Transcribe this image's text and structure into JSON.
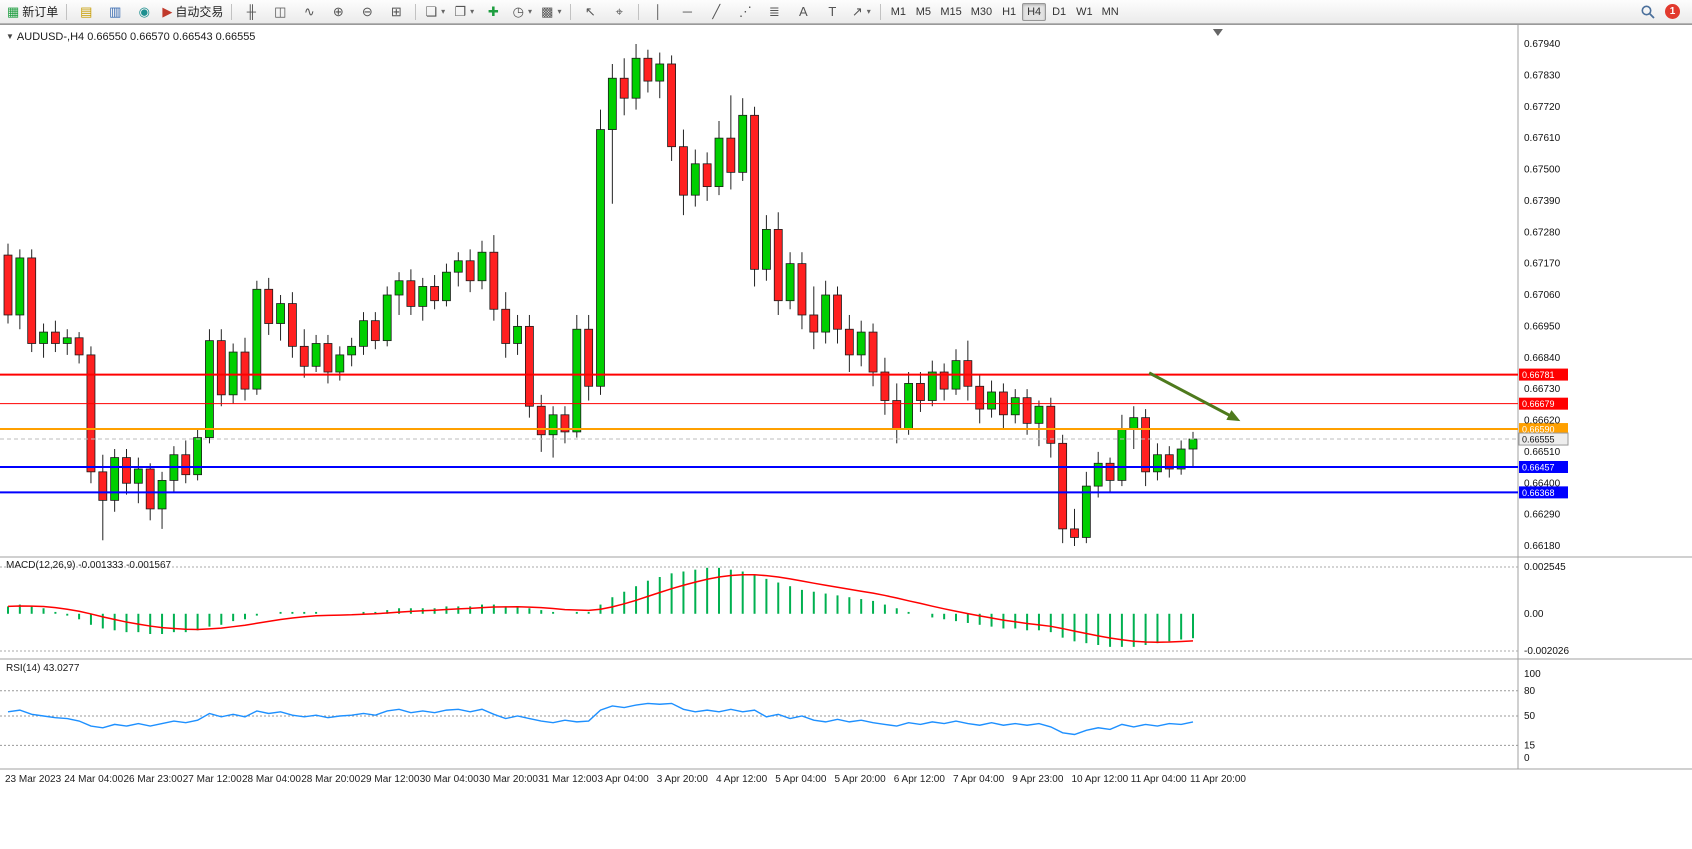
{
  "toolbar": {
    "groups": [
      [
        {
          "name": "new-order-button",
          "glyph": "▦",
          "glyph_color": "#1e9e40",
          "label": "新订单"
        }
      ],
      [
        {
          "name": "market-watch-button",
          "glyph": "▤",
          "glyph_color": "#c79c00"
        },
        {
          "name": "data-window-button",
          "glyph": "▥",
          "glyph_color": "#3568b0"
        },
        {
          "name": "navigator-button",
          "glyph": "◉",
          "glyph_color": "#1d8f8f"
        },
        {
          "name": "autotrading-button",
          "glyph": "▶",
          "glyph_color": "#c0392b",
          "label": "自动交易"
        }
      ],
      [
        {
          "name": "bar-chart-button",
          "glyph": "╫"
        },
        {
          "name": "candlestick-chart-button",
          "glyph": "◫"
        },
        {
          "name": "line-chart-button",
          "glyph": "∿"
        },
        {
          "name": "zoom-in-button",
          "glyph": "⊕"
        },
        {
          "name": "zoom-out-button",
          "glyph": "⊖"
        },
        {
          "name": "tile-windows-button",
          "glyph": "⊞"
        }
      ],
      [
        {
          "name": "new-chart-button",
          "glyph": "❏",
          "caret": true
        },
        {
          "name": "profiles-button",
          "glyph": "❐",
          "caret": true
        },
        {
          "name": "indicators-button",
          "glyph": "✚",
          "glyph_color": "#1e9e40"
        },
        {
          "name": "periods-button",
          "glyph": "◷",
          "caret": true
        },
        {
          "name": "templates-button",
          "glyph": "▩",
          "caret": true
        }
      ],
      [
        {
          "name": "cursor-button",
          "glyph": "↖"
        },
        {
          "name": "crosshair-button",
          "glyph": "⌖"
        }
      ],
      [
        {
          "name": "vertical-line-button",
          "glyph": "│"
        },
        {
          "name": "horizontal-line-button",
          "glyph": "─"
        },
        {
          "name": "trendline-button",
          "glyph": "╱"
        },
        {
          "name": "equidistant-channel-button",
          "glyph": "⋰"
        },
        {
          "name": "fibonacci-button",
          "glyph": "≣"
        },
        {
          "name": "text-button",
          "glyph": "A"
        },
        {
          "name": "text-label-button",
          "glyph": "T"
        },
        {
          "name": "arrows-button",
          "glyph": "↗",
          "caret": true
        }
      ]
    ],
    "timeframes": [
      {
        "label": "M1"
      },
      {
        "label": "M5"
      },
      {
        "label": "M15"
      },
      {
        "label": "M30"
      },
      {
        "label": "H1"
      },
      {
        "label": "H4",
        "active": true
      },
      {
        "label": "D1"
      },
      {
        "label": "W1"
      },
      {
        "label": "MN"
      }
    ],
    "notification_badge": "1"
  },
  "chart": {
    "collapse_arrow": "▼",
    "symbol_label": "AUDUSD-,H4  0.66550 0.66570 0.66543 0.66555",
    "price_axis": {
      "max": 0.6794,
      "min": 0.6618,
      "labels": [
        "0.67940",
        "0.67830",
        "0.67720",
        "0.67610",
        "0.67500",
        "0.67390",
        "0.67280",
        "0.67170",
        "0.67060",
        "0.66950",
        "0.66840",
        "0.66730",
        "0.66620",
        "0.66510",
        "0.66400",
        "0.66290",
        "0.66180"
      ]
    },
    "time_axis": {
      "labels": [
        "23 Mar 2023",
        "24 Mar 04:00",
        "26 Mar 23:00",
        "27 Mar 12:00",
        "28 Mar 04:00",
        "28 Mar 20:00",
        "29 Mar 12:00",
        "30 Mar 04:00",
        "30 Mar 20:00",
        "31 Mar 12:00",
        "3 Apr 04:00",
        "3 Apr 20:00",
        "4 Apr 12:00",
        "5 Apr 04:00",
        "5 Apr 20:00",
        "6 Apr 12:00",
        "7 Apr 04:00",
        "9 Apr 23:00",
        "10 Apr 12:00",
        "11 Apr 04:00",
        "11 Apr 20:00"
      ]
    },
    "hlines": [
      {
        "price": 0.66781,
        "color": "#ff0000",
        "width": 2,
        "tag": "0.66781"
      },
      {
        "price": 0.66679,
        "color": "#ff0000",
        "width": 1,
        "tag": "0.66679"
      },
      {
        "price": 0.6659,
        "color": "#ffa000",
        "width": 2,
        "tag": "0.66590"
      },
      {
        "price": 0.66457,
        "color": "#0000ff",
        "width": 2,
        "tag": "0.66457"
      },
      {
        "price": 0.66368,
        "color": "#0000ff",
        "width": 2,
        "tag": "0.66368"
      }
    ],
    "current_price": {
      "value": 0.66555,
      "tag": "0.66555"
    },
    "arrow_annotation": {
      "bar1": 96.3,
      "price1": 0.66787,
      "bar2": 104.0,
      "price2": 0.66618,
      "color": "#4e7a1d"
    },
    "shift_marker_bar": 102.1
  },
  "chart_data": {
    "type": "candlestick",
    "symbol": "AUDUSD",
    "timeframe": "H4",
    "bull_color": "#00cf00",
    "bear_color": "#ff2020",
    "wick_color": "#222222",
    "price_range": [
      0.6618,
      0.6794
    ],
    "ohlc": [
      [
        0.672,
        0.6724,
        0.6696,
        0.6699
      ],
      [
        0.6699,
        0.6722,
        0.6694,
        0.6719
      ],
      [
        0.6719,
        0.6722,
        0.6686,
        0.6689
      ],
      [
        0.6689,
        0.6696,
        0.6684,
        0.6693
      ],
      [
        0.6693,
        0.6697,
        0.6686,
        0.6689
      ],
      [
        0.6689,
        0.6694,
        0.6685,
        0.6691
      ],
      [
        0.6691,
        0.6693,
        0.6682,
        0.6685
      ],
      [
        0.6685,
        0.6688,
        0.664,
        0.6644
      ],
      [
        0.6644,
        0.665,
        0.662,
        0.6634
      ],
      [
        0.6634,
        0.6652,
        0.663,
        0.6649
      ],
      [
        0.6649,
        0.6652,
        0.6636,
        0.664
      ],
      [
        0.664,
        0.6649,
        0.6633,
        0.6645
      ],
      [
        0.6645,
        0.6647,
        0.6627,
        0.6631
      ],
      [
        0.6631,
        0.6644,
        0.6624,
        0.6641
      ],
      [
        0.6641,
        0.6653,
        0.6637,
        0.665
      ],
      [
        0.665,
        0.6655,
        0.664,
        0.6643
      ],
      [
        0.6643,
        0.6659,
        0.6641,
        0.6656
      ],
      [
        0.6656,
        0.6694,
        0.6654,
        0.669
      ],
      [
        0.669,
        0.6694,
        0.6667,
        0.6671
      ],
      [
        0.6671,
        0.6689,
        0.6668,
        0.6686
      ],
      [
        0.6686,
        0.6691,
        0.6669,
        0.6673
      ],
      [
        0.6673,
        0.6711,
        0.6671,
        0.6708
      ],
      [
        0.6708,
        0.6712,
        0.6692,
        0.6696
      ],
      [
        0.6696,
        0.6706,
        0.669,
        0.6703
      ],
      [
        0.6703,
        0.6707,
        0.6684,
        0.6688
      ],
      [
        0.6688,
        0.6694,
        0.6677,
        0.6681
      ],
      [
        0.6681,
        0.6692,
        0.6679,
        0.6689
      ],
      [
        0.6689,
        0.6692,
        0.6675,
        0.6679
      ],
      [
        0.6679,
        0.6688,
        0.6676,
        0.6685
      ],
      [
        0.6685,
        0.6691,
        0.6681,
        0.6688
      ],
      [
        0.6688,
        0.67,
        0.6685,
        0.6697
      ],
      [
        0.6697,
        0.67,
        0.6687,
        0.669
      ],
      [
        0.669,
        0.6709,
        0.6688,
        0.6706
      ],
      [
        0.6706,
        0.6714,
        0.6699,
        0.6711
      ],
      [
        0.6711,
        0.6715,
        0.6699,
        0.6702
      ],
      [
        0.6702,
        0.6712,
        0.6697,
        0.6709
      ],
      [
        0.6709,
        0.6713,
        0.6701,
        0.6704
      ],
      [
        0.6704,
        0.6717,
        0.6702,
        0.6714
      ],
      [
        0.6714,
        0.6721,
        0.6709,
        0.6718
      ],
      [
        0.6718,
        0.6722,
        0.6707,
        0.6711
      ],
      [
        0.6711,
        0.6725,
        0.6708,
        0.6721
      ],
      [
        0.6721,
        0.6727,
        0.6697,
        0.6701
      ],
      [
        0.6701,
        0.6707,
        0.6684,
        0.6689
      ],
      [
        0.6689,
        0.6699,
        0.6685,
        0.6695
      ],
      [
        0.6695,
        0.6699,
        0.6663,
        0.6667
      ],
      [
        0.6667,
        0.6671,
        0.6651,
        0.6657
      ],
      [
        0.6657,
        0.6667,
        0.6649,
        0.6664
      ],
      [
        0.6664,
        0.6667,
        0.6654,
        0.6658
      ],
      [
        0.6658,
        0.6699,
        0.6656,
        0.6694
      ],
      [
        0.6694,
        0.6699,
        0.6669,
        0.6674
      ],
      [
        0.6674,
        0.6771,
        0.6671,
        0.6764
      ],
      [
        0.6764,
        0.6787,
        0.6738,
        0.6782
      ],
      [
        0.6782,
        0.6789,
        0.6769,
        0.6775
      ],
      [
        0.6775,
        0.6794,
        0.6771,
        0.6789
      ],
      [
        0.6789,
        0.6792,
        0.6777,
        0.6781
      ],
      [
        0.6781,
        0.6791,
        0.6775,
        0.6787
      ],
      [
        0.6787,
        0.679,
        0.6753,
        0.6758
      ],
      [
        0.6758,
        0.6764,
        0.6734,
        0.6741
      ],
      [
        0.6741,
        0.6757,
        0.6737,
        0.6752
      ],
      [
        0.6752,
        0.6756,
        0.6739,
        0.6744
      ],
      [
        0.6744,
        0.6767,
        0.6741,
        0.6761
      ],
      [
        0.6761,
        0.6776,
        0.6743,
        0.6749
      ],
      [
        0.6749,
        0.6775,
        0.6746,
        0.6769
      ],
      [
        0.6769,
        0.6772,
        0.6709,
        0.6715
      ],
      [
        0.6715,
        0.6734,
        0.6711,
        0.6729
      ],
      [
        0.6729,
        0.6735,
        0.6699,
        0.6704
      ],
      [
        0.6704,
        0.6721,
        0.6701,
        0.6717
      ],
      [
        0.6717,
        0.6721,
        0.6694,
        0.6699
      ],
      [
        0.6699,
        0.6709,
        0.6687,
        0.6693
      ],
      [
        0.6693,
        0.6711,
        0.6689,
        0.6706
      ],
      [
        0.6706,
        0.6709,
        0.6689,
        0.6694
      ],
      [
        0.6694,
        0.6699,
        0.6679,
        0.6685
      ],
      [
        0.6685,
        0.6697,
        0.6681,
        0.6693
      ],
      [
        0.6693,
        0.6696,
        0.6674,
        0.6679
      ],
      [
        0.6679,
        0.6684,
        0.6664,
        0.6669
      ],
      [
        0.6669,
        0.6675,
        0.6654,
        0.6659
      ],
      [
        0.6659,
        0.6679,
        0.6657,
        0.6675
      ],
      [
        0.6675,
        0.6679,
        0.6665,
        0.6669
      ],
      [
        0.6669,
        0.6683,
        0.6667,
        0.6679
      ],
      [
        0.6679,
        0.6682,
        0.6669,
        0.6673
      ],
      [
        0.6673,
        0.6687,
        0.6671,
        0.6683
      ],
      [
        0.6683,
        0.669,
        0.6669,
        0.6674
      ],
      [
        0.6674,
        0.6678,
        0.6661,
        0.6666
      ],
      [
        0.6666,
        0.6676,
        0.6663,
        0.6672
      ],
      [
        0.6672,
        0.6675,
        0.6659,
        0.6664
      ],
      [
        0.6664,
        0.6673,
        0.6661,
        0.667
      ],
      [
        0.667,
        0.6673,
        0.6657,
        0.6661
      ],
      [
        0.6661,
        0.6669,
        0.6653,
        0.6667
      ],
      [
        0.6667,
        0.667,
        0.6649,
        0.6654
      ],
      [
        0.6654,
        0.6657,
        0.6619,
        0.6624
      ],
      [
        0.6624,
        0.6631,
        0.6618,
        0.6621
      ],
      [
        0.6621,
        0.6644,
        0.6619,
        0.6639
      ],
      [
        0.6639,
        0.6651,
        0.6635,
        0.6647
      ],
      [
        0.6647,
        0.6649,
        0.6637,
        0.6641
      ],
      [
        0.6641,
        0.6664,
        0.6639,
        0.6659
      ],
      [
        0.6659,
        0.6667,
        0.6652,
        0.6663
      ],
      [
        0.6663,
        0.6666,
        0.6639,
        0.6644
      ],
      [
        0.6644,
        0.6654,
        0.6641,
        0.665
      ],
      [
        0.665,
        0.6653,
        0.6642,
        0.6645
      ],
      [
        0.6645,
        0.6655,
        0.6643,
        0.6652
      ],
      [
        0.6652,
        0.6658,
        0.6646,
        0.66555
      ]
    ]
  },
  "macd": {
    "label": "MACD(12,26,9) -0.001333 -0.001567",
    "axis_labels": [
      "0.002545",
      "0.00",
      "-0.002026"
    ],
    "max": 0.002545,
    "min": -0.002026,
    "histogram_color": "#00b050",
    "signal_color": "#ff0000",
    "values": [
      0.0004,
      0.0005,
      0.0004,
      0.0003,
      0.0001,
      -0.0001,
      -0.0003,
      -0.0006,
      -0.0008,
      -0.0009,
      -0.001,
      -0.001,
      -0.0011,
      -0.0011,
      -0.001,
      -0.001,
      -0.0009,
      -0.0007,
      -0.0006,
      -0.0004,
      -0.0003,
      -0.0001,
      0.0,
      0.0001,
      0.0001,
      0.0001,
      0.0001,
      0.0,
      0.0,
      0.0,
      0.0001,
      0.0001,
      0.0002,
      0.0003,
      0.0003,
      0.0003,
      0.0003,
      0.0004,
      0.0004,
      0.0004,
      0.0005,
      0.0005,
      0.0004,
      0.0004,
      0.0003,
      0.0002,
      0.0001,
      0.0,
      0.0001,
      0.0001,
      0.0005,
      0.0009,
      0.0012,
      0.0015,
      0.0018,
      0.002,
      0.0022,
      0.0023,
      0.0024,
      0.0025,
      0.0025,
      0.0024,
      0.0023,
      0.0021,
      0.0019,
      0.0017,
      0.0015,
      0.0013,
      0.0012,
      0.0011,
      0.001,
      0.0009,
      0.0008,
      0.0007,
      0.0005,
      0.0003,
      0.0001,
      0.0,
      -0.0002,
      -0.0003,
      -0.0004,
      -0.0005,
      -0.0006,
      -0.0007,
      -0.0008,
      -0.0008,
      -0.0009,
      -0.0009,
      -0.001,
      -0.0013,
      -0.0015,
      -0.0016,
      -0.0017,
      -0.0018,
      -0.0018,
      -0.0018,
      -0.0017,
      -0.0016,
      -0.0015,
      -0.0014,
      -0.00133
    ]
  },
  "rsi": {
    "label": "RSI(14) 43.0277",
    "axis_labels": [
      "100",
      "80",
      "50",
      "15",
      "0"
    ],
    "levels": [
      80,
      50,
      15
    ],
    "max": 100,
    "min": 0,
    "line_color": "#1e90ff",
    "values": [
      55,
      57,
      52,
      50,
      48,
      47,
      44,
      38,
      36,
      40,
      38,
      41,
      38,
      41,
      44,
      42,
      45,
      53,
      49,
      52,
      49,
      56,
      53,
      55,
      51,
      49,
      51,
      48,
      50,
      51,
      53,
      51,
      56,
      58,
      54,
      56,
      54,
      57,
      58,
      55,
      58,
      52,
      47,
      50,
      47,
      44,
      42,
      45,
      43,
      44,
      57,
      62,
      60,
      63,
      65,
      64,
      65,
      58,
      55,
      57,
      55,
      58,
      55,
      57,
      49,
      52,
      47,
      50,
      45,
      43,
      46,
      43,
      45,
      42,
      40,
      38,
      42,
      40,
      43,
      41,
      44,
      41,
      39,
      42,
      39,
      41,
      39,
      41,
      37,
      30,
      28,
      33,
      36,
      34,
      40,
      37,
      40,
      38,
      41,
      40,
      43
    ]
  }
}
